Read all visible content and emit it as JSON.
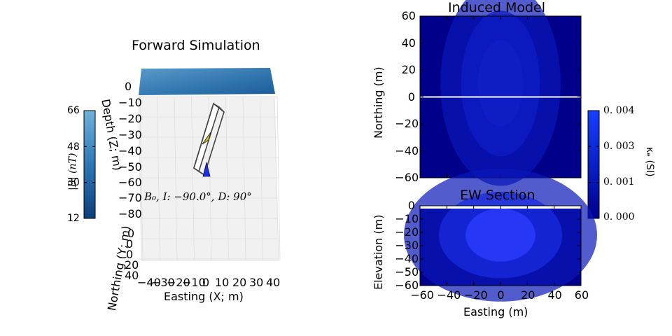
{
  "left_panel": {
    "title": "Forward Simulation",
    "colorbar": {
      "label": "|B| (nT)",
      "ticks": [
        "66",
        "48",
        "30",
        "12"
      ]
    },
    "axes": {
      "depth_label": "Depth (Z; m)",
      "depth_ticks": [
        "0",
        "−10",
        "−20",
        "−30",
        "−40",
        "−50",
        "−60",
        "−70",
        "−80"
      ],
      "northing_label": "Northing (Y; m)",
      "northing_ticks": [
        "0",
        "0",
        "0",
        "20",
        "40"
      ],
      "easting_label": "Easting (X; m)",
      "easting_ticks": [
        "−40",
        "−30",
        "−20",
        "−10",
        "0",
        "0",
        "10",
        "20",
        "30",
        "40"
      ]
    },
    "field_annotation": "B₀, I: −90.0°, D: 90°"
  },
  "chart_data": [
    {
      "type": "heatmap",
      "title": "Induced Model",
      "xlabel": "",
      "ylabel": "Northing (m)",
      "xlim": [
        -60,
        60
      ],
      "ylim": [
        -60,
        60
      ],
      "yticks": [
        "60",
        "40",
        "20",
        "0",
        "−20",
        "−40",
        "−60"
      ],
      "section_line_y": 0,
      "anomaly": {
        "center": [
          0,
          10
        ],
        "spread_x": 14,
        "spread_y": 40,
        "peak": 0.004
      }
    },
    {
      "type": "heatmap",
      "title": "EW Section",
      "xlabel": "Easting (m)",
      "ylabel": "Elevation (m)",
      "xlim": [
        -60,
        60
      ],
      "ylim": [
        -60,
        0
      ],
      "xticks": [
        "−60",
        "−40",
        "−20",
        "0",
        "20",
        "40",
        "60"
      ],
      "yticks": [
        "0",
        "−10",
        "−20",
        "−30",
        "−40",
        "−50",
        "−60"
      ],
      "anomaly": {
        "center": [
          0,
          -22
        ],
        "spread_x": 20,
        "spread_z": 25,
        "peak": 0.004
      }
    }
  ],
  "colorbar_right": {
    "label": "κₑ (SI)",
    "ticks": [
      "0. 004",
      "0. 003",
      "0. 001",
      "0. 000"
    ],
    "range": [
      0,
      0.004
    ]
  }
}
